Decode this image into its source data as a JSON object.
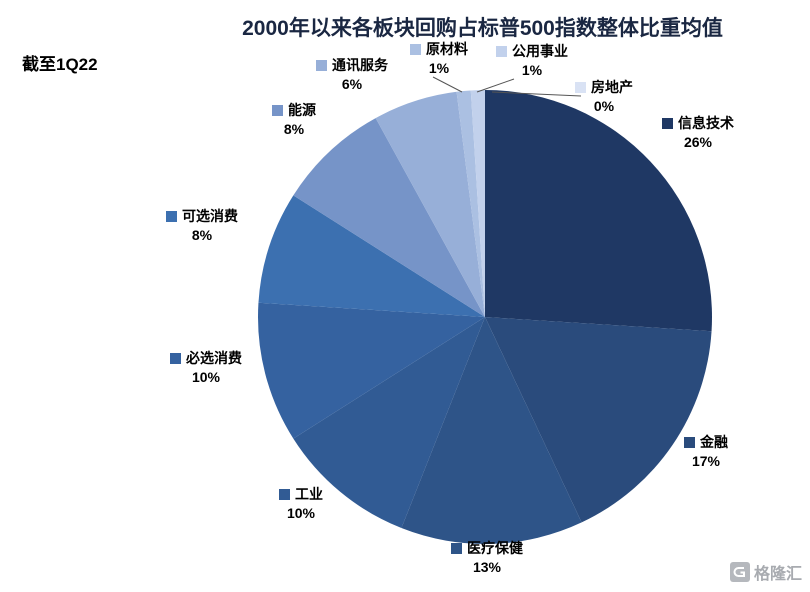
{
  "chart_data": {
    "type": "pie",
    "title": "2000年以来各板块回购占标普500指数整体比重均值",
    "note": "截至1Q22",
    "unit": "%",
    "clockwise": true,
    "start_angle": "12-oclock",
    "legend_position": "around-slices",
    "slices": [
      {
        "label": "信息技术",
        "value": 26,
        "pct_label": "26%",
        "color": "#1f3864"
      },
      {
        "label": "金融",
        "value": 17,
        "pct_label": "17%",
        "color": "#2a4b7c"
      },
      {
        "label": "医疗保健",
        "value": 13,
        "pct_label": "13%",
        "color": "#2e5488"
      },
      {
        "label": "工业",
        "value": 10,
        "pct_label": "10%",
        "color": "#315b94"
      },
      {
        "label": "必选消费",
        "value": 10,
        "pct_label": "10%",
        "color": "#3562a0"
      },
      {
        "label": "可选消费",
        "value": 8,
        "pct_label": "8%",
        "color": "#3c70b0"
      },
      {
        "label": "能源",
        "value": 8,
        "pct_label": "8%",
        "color": "#7694c8"
      },
      {
        "label": "通讯服务",
        "value": 6,
        "pct_label": "6%",
        "color": "#97afd8"
      },
      {
        "label": "原材料",
        "value": 1,
        "pct_label": "1%",
        "color": "#abc0e2"
      },
      {
        "label": "公用事业",
        "value": 1,
        "pct_label": "1%",
        "color": "#c2d1ec"
      },
      {
        "label": "房地产",
        "value": 0,
        "pct_label": "0%",
        "color": "#d9e2f4"
      }
    ]
  },
  "watermark": {
    "logo_icon": "gelonghui-logo",
    "text": "格隆汇"
  }
}
